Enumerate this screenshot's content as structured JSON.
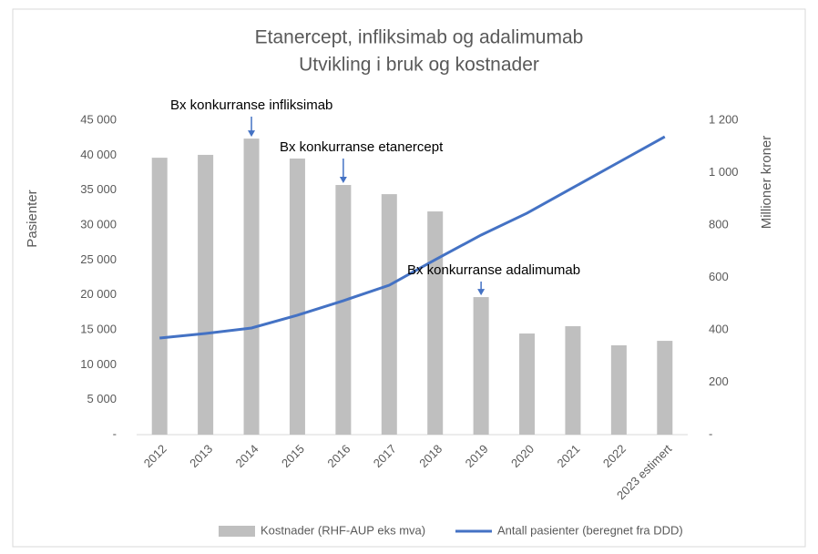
{
  "chart_data": {
    "type": "bar-line",
    "title": [
      "Etanercept, infliksimab og adalimumab",
      "Utvikling i bruk og kostnader"
    ],
    "ylabel": "Pasienter",
    "y2label": "Millioner kroner",
    "categories": [
      "2012",
      "2013",
      "2014",
      "2015",
      "2016",
      "2017",
      "2018",
      "2019",
      "2020",
      "2021",
      "2022",
      "2023 estimert"
    ],
    "series": [
      {
        "name": "Kostnader (RHF-AUP eks mva)",
        "type": "bar",
        "axis": "y2",
        "color": "#bfbfbf",
        "values": [
          1057,
          1068,
          1130,
          1054,
          953,
          918,
          852,
          525,
          386,
          414,
          341,
          358
        ]
      },
      {
        "name": "Antall pasienter (beregnet fra DDD)",
        "type": "line",
        "color": "#4472c4",
        "values": [
          13830,
          14480,
          15260,
          17090,
          19170,
          21390,
          25040,
          28570,
          31700,
          35350,
          39000,
          42650
        ]
      }
    ],
    "ylim": [
      0,
      45000
    ],
    "yticks": [
      {
        "value": 0,
        "label": "-"
      },
      {
        "value": 5000,
        "label": "5 000"
      },
      {
        "value": 10000,
        "label": "10 000"
      },
      {
        "value": 15000,
        "label": "15 000"
      },
      {
        "value": 20000,
        "label": "20 000"
      },
      {
        "value": 25000,
        "label": "25 000"
      },
      {
        "value": 30000,
        "label": "30 000"
      },
      {
        "value": 35000,
        "label": "35 000"
      },
      {
        "value": 40000,
        "label": "40 000"
      },
      {
        "value": 45000,
        "label": "45 000"
      }
    ],
    "y2lim": [
      0,
      1200
    ],
    "y2ticks": [
      {
        "value": 0,
        "label": "-"
      },
      200,
      400,
      600,
      800,
      {
        "value": 1000,
        "label": "1 000"
      },
      {
        "value": 1200,
        "label": "1 200"
      }
    ],
    "annotations": [
      "Bx konkurranse infliksimab",
      "Bx konkurranse etanercept",
      "Bx konkurranse adalimumab"
    ],
    "legend": "bottom"
  }
}
